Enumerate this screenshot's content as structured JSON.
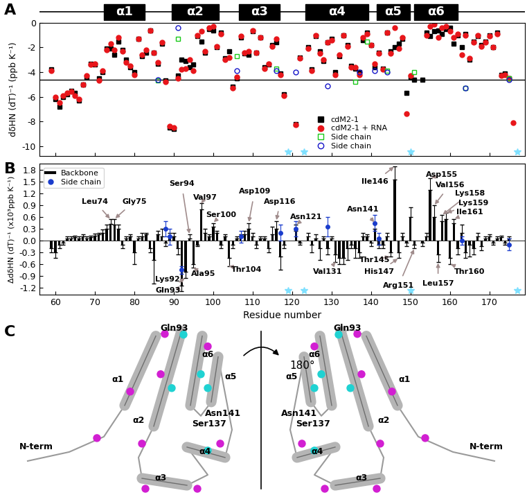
{
  "chart_data": [
    {
      "type": "scatter",
      "title": "A",
      "ylabel": "dδHN (dT)⁻¹ (ppb K⁻¹)",
      "xlim": [
        56,
        179
      ],
      "xticks": [
        60,
        70,
        80,
        90,
        100,
        110,
        120,
        130,
        140,
        150,
        160,
        170
      ],
      "ylim": [
        -10.8,
        0
      ],
      "yticks": [
        0,
        -2,
        -4,
        -6,
        -8,
        -10
      ],
      "tick_labels": "y",
      "legend": "lower center",
      "reference_line": -4.6,
      "star_residues": [
        119,
        123,
        150,
        177
      ],
      "helices": [
        {
          "label": "α1",
          "start": 72.3,
          "end": 82.6
        },
        {
          "label": "α2",
          "start": 89.5,
          "end": 101.4
        },
        {
          "label": "α3",
          "start": 106.6,
          "end": 116.8
        },
        {
          "label": "α4",
          "start": 123.4,
          "end": 139.3
        },
        {
          "label": "α5",
          "start": 141.4,
          "end": 149.8
        },
        {
          "label": "α6",
          "start": 151.0,
          "end": 162.0
        }
      ],
      "x": [
        59,
        60,
        61,
        62,
        63,
        64,
        65,
        66,
        67,
        68,
        69,
        70,
        71,
        72,
        73,
        74,
        75,
        76,
        77,
        78,
        79,
        80,
        81,
        82,
        83,
        84,
        85,
        86,
        87,
        88,
        89,
        90,
        91,
        92,
        93,
        94,
        95,
        96,
        97,
        98,
        99,
        100,
        101,
        102,
        103,
        104,
        105,
        106,
        107,
        108,
        109,
        110,
        111,
        112,
        113,
        114,
        115,
        116,
        117,
        118,
        119,
        120,
        121,
        122,
        123,
        124,
        125,
        126,
        127,
        128,
        129,
        130,
        131,
        132,
        133,
        134,
        135,
        136,
        137,
        138,
        139,
        140,
        141,
        142,
        143,
        144,
        145,
        146,
        147,
        148,
        149,
        150,
        151,
        152,
        153,
        154,
        155,
        156,
        157,
        158,
        159,
        160,
        161,
        162,
        163,
        164,
        165,
        166,
        167,
        168,
        169,
        170,
        171,
        172,
        173,
        174,
        175,
        176
      ],
      "series": [
        {
          "name": "cdM2-1",
          "color": "#000000",
          "marker": "square",
          "values": [
            -3.8,
            -6.2,
            -6.8,
            -6.0,
            -5.8,
            -5.5,
            -5.7,
            -6.3,
            -5.0,
            -4.4,
            -3.3,
            -3.4,
            -4.5,
            -4.0,
            -2.1,
            -2.1,
            -2.6,
            -1.5,
            -2.2,
            -3.0,
            -3.6,
            -4.0,
            -1.3,
            -2.7,
            -2.4,
            -0.6,
            -2.4,
            -3.3,
            -1.7,
            -4.7,
            -8.5,
            -8.6,
            -4.3,
            -3.0,
            -3.1,
            -3.6,
            -3.4,
            -1.1,
            -1.5,
            -2.4,
            -0.5,
            -0.6,
            -2.0,
            -0.8,
            -2.9,
            -2.3,
            -5.2,
            -4.5,
            -1.2,
            -2.5,
            -2.6,
            -0.7,
            -2.4,
            -1.2,
            -3.6,
            -3.4,
            -1.8,
            -1.6,
            -4.1,
            -5.8,
            null,
            null,
            -8.2,
            -2.8,
            null,
            -2.0,
            -3.8,
            -1.1,
            -2.3,
            -3.1,
            -1.6,
            -1.3,
            -4.0,
            -2.7,
            -1.0,
            -1.8,
            -3.5,
            -3.7,
            -4.0,
            -1.4,
            -0.8,
            -1.8,
            -3.6,
            -2.4,
            -3.7,
            -0.8,
            -2.3,
            -2.0,
            -1.7,
            -1.3,
            -5.7,
            -4.4,
            -4.6,
            null,
            -4.6,
            -0.8,
            -1.1,
            -0.7,
            -0.6,
            -0.9,
            -0.5,
            -0.4,
            -1.7,
            -1.0,
            -2.0,
            -0.9,
            -3.0,
            -1.5,
            -1.1,
            -1.8,
            -1.5,
            -1.0,
            -2.0,
            -0.8,
            -4.2,
            -4.1,
            -4.5,
            null
          ]
        },
        {
          "name": "cdM2-1 + RNA",
          "color": "#e8161b",
          "marker": "circle",
          "values": [
            -3.9,
            -6.0,
            -6.5,
            -5.9,
            -5.7,
            -5.6,
            -5.9,
            -6.2,
            -5.0,
            -4.3,
            -3.4,
            -3.3,
            -4.7,
            -3.9,
            -2.2,
            -1.7,
            -2.2,
            -1.2,
            -2.3,
            -3.2,
            -3.5,
            -4.2,
            -1.3,
            -2.6,
            -2.2,
            -0.6,
            -2.4,
            -3.2,
            -1.6,
            -4.8,
            -8.4,
            -8.5,
            -4.5,
            -3.8,
            -3.7,
            -3.0,
            -3.9,
            -1.0,
            -0.7,
            -2.3,
            -0.4,
            -0.3,
            -1.9,
            -0.9,
            -3.0,
            -2.8,
            -5.3,
            -4.4,
            -1.1,
            -2.4,
            -2.3,
            -0.6,
            -2.4,
            -1.2,
            -3.7,
            -3.3,
            -1.9,
            -1.3,
            -4.2,
            -5.9,
            null,
            null,
            -8.3,
            -2.9,
            null,
            -2.1,
            -3.9,
            -1.0,
            -2.5,
            -3.0,
            -1.6,
            -1.4,
            -4.2,
            -2.6,
            -1.0,
            -1.9,
            -3.6,
            -3.6,
            -4.2,
            -1.2,
            -0.9,
            -1.8,
            -3.3,
            -2.5,
            -3.8,
            -0.8,
            -2.5,
            -0.4,
            -2.1,
            -1.2,
            -7.4,
            -4.3,
            null,
            null,
            null,
            -1.0,
            -0.3,
            -0.1,
            -1.2,
            -0.4,
            -0.3,
            -0.7,
            -1.2,
            -0.9,
            -2.6,
            -1.0,
            -2.9,
            -1.6,
            -1.0,
            -1.9,
            -1.6,
            -1.1,
            -2.0,
            -0.9,
            -4.3,
            -4.2,
            -4.5,
            -8.1
          ]
        },
        {
          "name": "Side chain",
          "color": "#19c919",
          "marker": "open_square",
          "x": [
            86,
            91,
            106,
            116,
            136,
            139,
            144,
            151,
            164,
            175
          ],
          "values": [
            -4.7,
            -1.3,
            -2.7,
            -3.7,
            -4.8,
            -1.5,
            -3.9,
            -4.0,
            -5.3,
            -4.5
          ]
        },
        {
          "name": "Side chain",
          "color": "#1414c8",
          "marker": "open_circle",
          "x": [
            86,
            91,
            106,
            116,
            121,
            129,
            137,
            141,
            144,
            164,
            175
          ],
          "values": [
            -4.6,
            -0.4,
            -3.9,
            -3.9,
            -4.0,
            -5.1,
            -4.0,
            -3.9,
            -4.0,
            -5.3,
            -4.6
          ]
        }
      ]
    },
    {
      "type": "bar",
      "title": "B",
      "xlabel": "Residue number",
      "ylabel": "ΔdδHN (dT)⁻¹ (x10³ppb K⁻¹)",
      "xlim": [
        56,
        179
      ],
      "xticks": [
        60,
        70,
        80,
        90,
        100,
        110,
        120,
        130,
        140,
        150,
        160,
        170
      ],
      "ylim": [
        -1.38,
        1.96
      ],
      "yticks": [
        -1.2,
        -0.9,
        -0.6,
        -0.3,
        0.0,
        0.3,
        0.6,
        0.9,
        1.2,
        1.5,
        1.8
      ],
      "legend": "upper left",
      "star_residues": [
        119,
        123,
        150,
        177
      ],
      "x": [
        59,
        60,
        61,
        62,
        63,
        64,
        65,
        66,
        67,
        68,
        69,
        70,
        71,
        72,
        73,
        74,
        75,
        76,
        77,
        78,
        79,
        80,
        81,
        82,
        83,
        84,
        85,
        86,
        87,
        88,
        89,
        90,
        91,
        92,
        93,
        94,
        95,
        96,
        97,
        98,
        99,
        100,
        101,
        102,
        103,
        104,
        105,
        106,
        107,
        108,
        109,
        110,
        111,
        112,
        113,
        114,
        115,
        116,
        117,
        118,
        119,
        120,
        121,
        122,
        123,
        124,
        125,
        126,
        127,
        128,
        129,
        130,
        131,
        132,
        133,
        134,
        135,
        136,
        137,
        138,
        139,
        140,
        141,
        142,
        143,
        144,
        145,
        146,
        147,
        148,
        149,
        150,
        151,
        152,
        153,
        154,
        155,
        156,
        157,
        158,
        159,
        160,
        161,
        162,
        163,
        164,
        165,
        166,
        167,
        168,
        169,
        170,
        171,
        172,
        173,
        174,
        175,
        176
      ],
      "series": [
        {
          "name": "Backbone",
          "type": "bar",
          "color": "#000000",
          "values": [
            -0.2,
            -0.3,
            -0.1,
            -0.05,
            0.05,
            0.05,
            0.08,
            0.05,
            0.1,
            0.05,
            0.08,
            0.12,
            0.15,
            0.2,
            0.3,
            0.42,
            0.4,
            0.3,
            -0.1,
            0.05,
            0.1,
            -0.3,
            0.05,
            0.1,
            0.15,
            -0.2,
            -0.5,
            0.15,
            0.1,
            -0.05,
            0.1,
            0.1,
            -0.2,
            -1.15,
            -0.8,
            0.05,
            -0.6,
            -0.1,
            0.8,
            0.2,
            0.1,
            0.35,
            0.2,
            -0.1,
            0.1,
            -0.45,
            -0.1,
            0.05,
            0.1,
            0.15,
            0.3,
            0.1,
            -0.1,
            0.05,
            0.05,
            -0.2,
            0.15,
            0.3,
            -0.4,
            -0.1,
            null,
            null,
            0.25,
            -0.05,
            null,
            0.1,
            -0.1,
            0.05,
            -0.2,
            0.05,
            -0.2,
            0.05,
            -0.35,
            -0.45,
            -0.45,
            -0.2,
            -0.1,
            -0.2,
            -0.3,
            0.1,
            0.1,
            -0.05,
            0.3,
            -0.1,
            -0.1,
            0.1,
            -0.3,
            1.55,
            -0.3,
            0.1,
            -0.05,
            0.6,
            -0.1,
            null,
            -0.05,
            0.1,
            1.3,
            0.6,
            -0.35,
            0.5,
            0.55,
            -0.45,
            0.45,
            -0.2,
            0.2,
            -0.3,
            -0.1,
            -0.2,
            0.1,
            -0.15,
            0.05,
            0.1,
            -0.05,
            0.05,
            0.08,
            -0.05,
            0.05,
            null
          ],
          "errors": [
            0.1,
            0.15,
            0.1,
            0.05,
            0.05,
            0.05,
            0.05,
            0.05,
            0.05,
            0.05,
            0.05,
            0.05,
            0.05,
            0.08,
            0.1,
            0.12,
            0.15,
            0.1,
            0.1,
            0.05,
            0.05,
            0.3,
            0.05,
            0.1,
            0.05,
            0.1,
            0.6,
            0.1,
            0.2,
            0.1,
            0.1,
            0.1,
            0.15,
            0.15,
            0.15,
            0.1,
            0.1,
            0.05,
            0.15,
            0.1,
            0.05,
            0.1,
            0.05,
            0.1,
            0.05,
            0.2,
            0.1,
            0.05,
            0.05,
            0.1,
            0.15,
            0.1,
            0.1,
            0.05,
            0.05,
            0.1,
            0.2,
            0.2,
            0.35,
            0.1,
            null,
            null,
            0.15,
            0.05,
            null,
            0.1,
            0.2,
            0.1,
            0.3,
            0.05,
            0.15,
            0.05,
            0.2,
            0.15,
            0.15,
            0.3,
            0.1,
            0.25,
            0.15,
            0.1,
            0.05,
            0.1,
            0.15,
            0.1,
            0.1,
            0.1,
            0.1,
            0.35,
            0.15,
            0.1,
            0.1,
            0.25,
            0.1,
            null,
            0.1,
            0.1,
            0.3,
            0.3,
            0.2,
            0.15,
            0.15,
            0.15,
            0.1,
            0.15,
            0.2,
            0.15,
            0.3,
            0.15,
            0.1,
            0.1,
            0.05,
            0.05,
            0.05,
            0.05,
            0.05,
            0.05,
            0.05,
            null
          ]
        },
        {
          "name": "Side chain",
          "type": "scatter",
          "color": "#1a3ccc",
          "marker": "circle",
          "x": [
            88,
            89,
            92,
            107,
            117,
            121,
            129,
            141,
            142,
            163,
            175
          ],
          "values": [
            0.3,
            0.1,
            -0.75,
            0.1,
            0.2,
            0.3,
            0.35,
            0.45,
            0.05,
            0.0,
            -0.1
          ],
          "errors": [
            0.2,
            0.2,
            0.1,
            0.15,
            0.2,
            0.2,
            0.25,
            0.2,
            0.15,
            0.1,
            0.15
          ]
        }
      ],
      "annotations": [
        {
          "label": "Leu74",
          "residue": 74
        },
        {
          "label": "Gly75",
          "residue": 75
        },
        {
          "label": "Lys92",
          "residue": 92
        },
        {
          "label": "Gln93",
          "residue": 93
        },
        {
          "label": "Ser94",
          "residue": 94
        },
        {
          "label": "Ala95",
          "residue": 95
        },
        {
          "label": "Val97",
          "residue": 97
        },
        {
          "label": "Ser100",
          "residue": 100
        },
        {
          "label": "Thr104",
          "residue": 104
        },
        {
          "label": "Asp109",
          "residue": 109
        },
        {
          "label": "Asp116",
          "residue": 116
        },
        {
          "label": "Asn121",
          "residue": 121
        },
        {
          "label": "Val131",
          "residue": 131
        },
        {
          "label": "Asn141",
          "residue": 141
        },
        {
          "label": "Thr145",
          "residue": 145
        },
        {
          "label": "Ile146",
          "residue": 146
        },
        {
          "label": "His147",
          "residue": 147
        },
        {
          "label": "Arg151",
          "residue": 151
        },
        {
          "label": "Asp155",
          "residue": 155
        },
        {
          "label": "Val156",
          "residue": 156
        },
        {
          "label": "Leu157",
          "residue": 157
        },
        {
          "label": "Lys158",
          "residue": 158
        },
        {
          "label": "Lys159",
          "residue": 159
        },
        {
          "label": "Thr160",
          "residue": 160
        },
        {
          "label": "Ile161",
          "residue": 161
        }
      ]
    }
  ],
  "panel_c": {
    "title": "C",
    "left_labels": [
      "Gln93",
      "α1",
      "α2",
      "α6",
      "α5",
      "Asn141",
      "Ser137",
      "α4",
      "α3",
      "N-term"
    ],
    "right_labels": [
      "Gln93",
      "α1",
      "α2",
      "α6",
      "α5",
      "Asn141",
      "Ser137",
      "α4",
      "α3",
      "N-term"
    ],
    "rotation_label": "180°"
  }
}
